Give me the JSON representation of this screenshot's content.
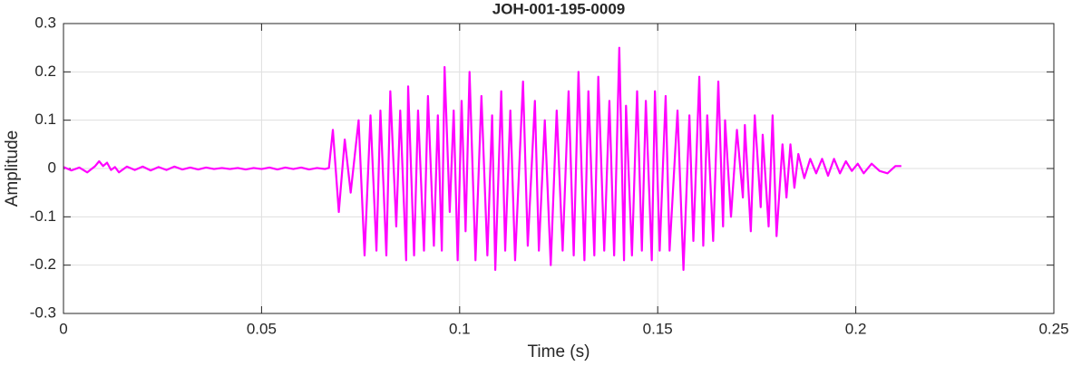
{
  "chart_data": {
    "type": "line",
    "title": "JOH-001-195-0009",
    "x_label": "Time (s)",
    "y_label": "Amplitude",
    "xlim": [
      0,
      0.25
    ],
    "xticks": [
      0,
      0.05,
      0.1,
      0.15,
      0.2,
      0.25
    ],
    "ylim": [
      -0.3,
      0.3
    ],
    "yticks": [
      -0.3,
      -0.2,
      -0.1,
      0,
      0.1,
      0.2,
      0.3
    ],
    "grid": true,
    "series": [
      {
        "color": "#ff00ff",
        "x": [
          0,
          0.002,
          0.004,
          0.006,
          0.008,
          0.009,
          0.01,
          0.011,
          0.012,
          0.013,
          0.014,
          0.016,
          0.018,
          0.02,
          0.022,
          0.024,
          0.026,
          0.028,
          0.03,
          0.032,
          0.034,
          0.036,
          0.038,
          0.04,
          0.042,
          0.044,
          0.046,
          0.048,
          0.05,
          0.052,
          0.054,
          0.056,
          0.058,
          0.06,
          0.062,
          0.064,
          0.066,
          0.067,
          0.068,
          0.0695,
          0.071,
          0.0725,
          0.0745,
          0.076,
          0.0775,
          0.079,
          0.08,
          0.0815,
          0.0825,
          0.084,
          0.085,
          0.0865,
          0.087,
          0.0885,
          0.0895,
          0.091,
          0.092,
          0.0935,
          0.0945,
          0.0955,
          0.0962,
          0.0975,
          0.0985,
          0.0995,
          0.1005,
          0.1015,
          0.1025,
          0.104,
          0.1055,
          0.107,
          0.1082,
          0.109,
          0.1105,
          0.1115,
          0.1128,
          0.114,
          0.116,
          0.1172,
          0.119,
          0.12,
          0.1215,
          0.123,
          0.1245,
          0.126,
          0.1275,
          0.1288,
          0.13,
          0.1315,
          0.1325,
          0.134,
          0.135,
          0.1365,
          0.1378,
          0.139,
          0.1403,
          0.1415,
          0.142,
          0.1435,
          0.1448,
          0.146,
          0.147,
          0.1485,
          0.1493,
          0.1505,
          0.152,
          0.153,
          0.155,
          0.1565,
          0.158,
          0.159,
          0.1605,
          0.1615,
          0.1625,
          0.164,
          0.1653,
          0.1665,
          0.167,
          0.1685,
          0.17,
          0.1715,
          0.172,
          0.1735,
          0.1745,
          0.176,
          0.1765,
          0.178,
          0.179,
          0.18,
          0.1815,
          0.1825,
          0.1835,
          0.1845,
          0.1855,
          0.187,
          0.1885,
          0.19,
          0.1915,
          0.193,
          0.1945,
          0.196,
          0.1975,
          0.199,
          0.2005,
          0.202,
          0.204,
          0.206,
          0.208,
          0.21,
          0.2115
        ],
        "values": [
          0.003,
          -0.004,
          0.002,
          -0.008,
          0.005,
          0.015,
          0.005,
          0.012,
          -0.003,
          0.003,
          -0.008,
          0.004,
          -0.003,
          0.004,
          -0.004,
          0.003,
          -0.003,
          0.004,
          -0.002,
          0.002,
          -0.002,
          0.002,
          -0.001,
          0.001,
          -0.001,
          0.001,
          -0.002,
          0.001,
          -0.001,
          0.002,
          -0.002,
          0.002,
          -0.001,
          0.002,
          -0.002,
          0.001,
          -0.001,
          0.001,
          0.08,
          -0.09,
          0.06,
          -0.05,
          0.1,
          -0.18,
          0.11,
          -0.17,
          0.12,
          -0.18,
          0.16,
          -0.12,
          0.12,
          -0.19,
          0.17,
          -0.18,
          0.12,
          -0.17,
          0.15,
          -0.16,
          0.11,
          -0.17,
          0.21,
          -0.09,
          0.12,
          -0.19,
          0.14,
          -0.13,
          0.2,
          -0.19,
          0.15,
          -0.18,
          0.11,
          -0.21,
          0.16,
          -0.17,
          0.12,
          -0.19,
          0.18,
          -0.16,
          0.14,
          -0.17,
          0.1,
          -0.2,
          0.12,
          -0.17,
          0.16,
          -0.18,
          0.2,
          -0.19,
          0.16,
          -0.18,
          0.19,
          -0.17,
          0.14,
          -0.18,
          0.25,
          -0.19,
          0.13,
          -0.18,
          0.16,
          -0.17,
          0.14,
          -0.19,
          0.16,
          -0.17,
          0.15,
          -0.17,
          0.12,
          -0.21,
          0.11,
          -0.15,
          0.19,
          -0.16,
          0.11,
          -0.15,
          0.18,
          -0.12,
          0.1,
          -0.1,
          0.08,
          -0.06,
          0.09,
          -0.13,
          0.11,
          -0.08,
          0.07,
          -0.12,
          0.11,
          -0.14,
          0.05,
          -0.06,
          0.05,
          -0.04,
          0.03,
          -0.02,
          0.02,
          -0.01,
          0.02,
          -0.015,
          0.02,
          -0.01,
          0.015,
          -0.005,
          0.01,
          -0.01,
          0.01,
          -0.005,
          -0.01,
          0.005,
          0.005
        ]
      }
    ]
  }
}
